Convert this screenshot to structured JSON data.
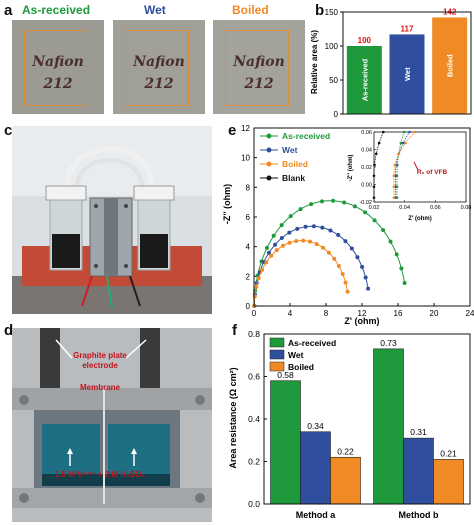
{
  "panel_a": {
    "letter": "a",
    "photos": [
      {
        "label": "As-received",
        "color": "#1e9a3c",
        "text1": "Nafion",
        "text2": "212"
      },
      {
        "label": "Wet",
        "color": "#2f4f9e",
        "text1": "Nafion",
        "text2": "212"
      },
      {
        "label": "Boiled",
        "color": "#f08a24",
        "text1": "Nafion",
        "text2": "212"
      }
    ]
  },
  "panel_b": {
    "letter": "b",
    "chart_data": {
      "type": "bar",
      "categories": [
        "As-received",
        "Wet",
        "Boiled"
      ],
      "values": [
        100,
        117,
        142
      ],
      "value_labels": [
        "100",
        "117",
        "142"
      ],
      "colors": [
        "#1e9a3c",
        "#2f4f9e",
        "#f08a24"
      ],
      "ylabel": "Relative area (%)",
      "ylim": [
        0,
        150
      ],
      "yticks": [
        "0",
        "50",
        "100",
        "150"
      ]
    }
  },
  "panel_c": {
    "letter": "c"
  },
  "panel_d": {
    "letter": "d",
    "label_electrode_1": "Graphite plate",
    "label_electrode_2": "electrode",
    "label_membrane": "Membrane",
    "label_electrolyte": "1.5 M V³·⁵⁺ + 2 M H₂SO₄"
  },
  "panel_e": {
    "letter": "e",
    "chart_data": {
      "type": "scatter",
      "xlabel": "Z' (ohm)",
      "ylabel": "-Z'' (ohm)",
      "xlim": [
        0,
        24
      ],
      "ylim": [
        0,
        12
      ],
      "xticks": [
        "0",
        "4",
        "8",
        "12",
        "16",
        "20",
        "24"
      ],
      "yticks": [
        "0",
        "2",
        "4",
        "6",
        "8",
        "10",
        "12"
      ],
      "series": [
        {
          "name": "As-received",
          "color": "#1e9a3c",
          "r0": 0.035,
          "diameter": 16.9
        },
        {
          "name": "Wet",
          "color": "#2f4f9e",
          "r0": 0.03,
          "diameter": 12.8
        },
        {
          "name": "Boiled",
          "color": "#f08a24",
          "r0": 0.025,
          "diameter": 10.5
        },
        {
          "name": "Blank",
          "color": "#111111",
          "r0": 0.02,
          "diameter": 0.0
        }
      ],
      "inset": {
        "xlim": [
          0.02,
          0.08
        ],
        "ylim": [
          -0.02,
          0.06
        ],
        "xticks": [
          "0.02",
          "0.04",
          "0.06",
          "0.08"
        ],
        "yticks": [
          "-0.02",
          "0.00",
          "0.02",
          "0.04",
          "0.06"
        ],
        "xlabel": "Z' (ohm)",
        "ylabel": "-Z'' (ohm)",
        "annotation": "R₀ of VFB"
      }
    }
  },
  "panel_f": {
    "letter": "f",
    "chart_data": {
      "type": "bar",
      "categories": [
        "Method a",
        "Method b"
      ],
      "series": [
        {
          "name": "As-received",
          "color": "#1e9a3c",
          "values": [
            0.58,
            0.73
          ]
        },
        {
          "name": "Wet",
          "color": "#2f4f9e",
          "values": [
            0.34,
            0.31
          ]
        },
        {
          "name": "Boiled",
          "color": "#f08a24",
          "values": [
            0.22,
            0.21
          ]
        }
      ],
      "value_labels": [
        [
          "0.58",
          "0.73"
        ],
        [
          "0.34",
          "0.31"
        ],
        [
          "0.22",
          "0.21"
        ]
      ],
      "ylabel": "Area resistance (Ω cm²)",
      "ylim": [
        0,
        0.8
      ],
      "yticks": [
        "0.0",
        "0.2",
        "0.4",
        "0.6",
        "0.8"
      ],
      "legend": "top-left"
    }
  }
}
